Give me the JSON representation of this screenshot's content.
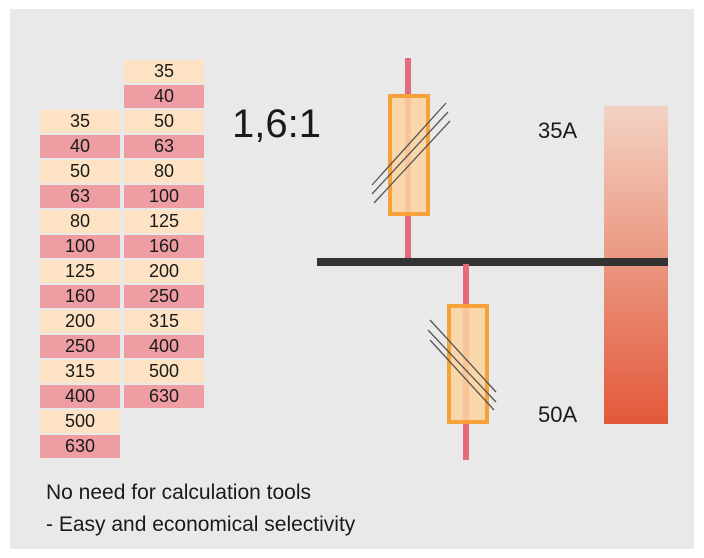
{
  "table": {
    "left_column": [
      "35",
      "40",
      "50",
      "63",
      "80",
      "100",
      "125",
      "160",
      "200",
      "250",
      "315",
      "400",
      "500",
      "630"
    ],
    "right_column": [
      "35",
      "40",
      "50",
      "63",
      "80",
      "100",
      "125",
      "160",
      "200",
      "250",
      "315",
      "400",
      "500",
      "630"
    ],
    "row_colors": [
      "#fde3c4",
      "#ee9ea3"
    ]
  },
  "ratio_label": "1,6:1",
  "ratings": {
    "upstream": "35A",
    "downstream": "50A"
  },
  "caption": {
    "line1": "No need for calculation tools",
    "line2": "- Easy and economical selectivity"
  },
  "colors": {
    "busbar": "#333333",
    "conductor": "#e46a7c",
    "fuse_outline": "#f5a23a",
    "fuse_fill": "#fbd39f",
    "gradient_top": "#f3d2c3",
    "gradient_bottom": "#e2583a"
  }
}
